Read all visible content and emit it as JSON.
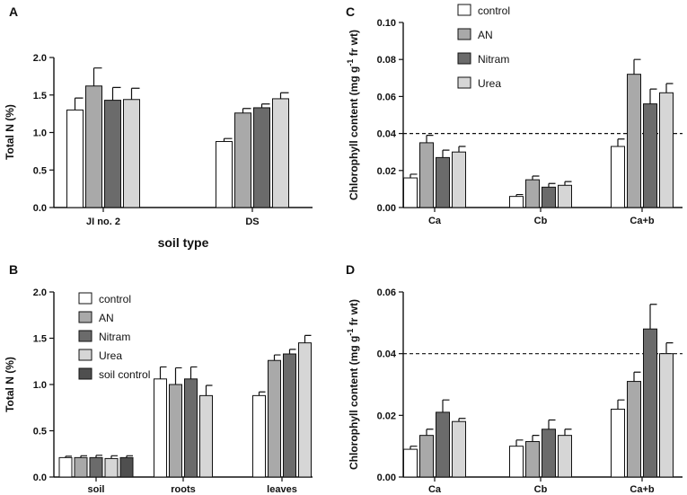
{
  "colors": {
    "control": "#ffffff",
    "AN": "#a9a9a9",
    "Nitram": "#6b6b6b",
    "Urea": "#d6d6d6",
    "soil control": "#4f4f4f"
  },
  "chart_data": [
    {
      "panel": "A",
      "type": "bar",
      "xlabel": "soil type",
      "ylabel": "Total N (%)",
      "ylim": [
        0,
        2.0
      ],
      "yticks": [
        "0.0",
        "0.5",
        "1.0",
        "1.5",
        "2.0"
      ],
      "categories": [
        "JI no. 2",
        "DS"
      ],
      "series": [
        {
          "name": "control",
          "values": [
            1.3,
            0.88
          ],
          "errors": [
            0.16,
            0.04
          ]
        },
        {
          "name": "AN",
          "values": [
            1.62,
            1.26
          ],
          "errors": [
            0.24,
            0.06
          ]
        },
        {
          "name": "Nitram",
          "values": [
            1.43,
            1.33
          ],
          "errors": [
            0.17,
            0.05
          ]
        },
        {
          "name": "Urea",
          "values": [
            1.44,
            1.45
          ],
          "errors": [
            0.15,
            0.08
          ]
        }
      ],
      "legend": false
    },
    {
      "panel": "B",
      "type": "bar",
      "xlabel": "",
      "ylabel": "Total N (%)",
      "ylim": [
        0,
        2.0
      ],
      "yticks": [
        "0.0",
        "0.5",
        "1.0",
        "1.5",
        "2.0"
      ],
      "categories": [
        "soil",
        "roots",
        "leaves"
      ],
      "series": [
        {
          "name": "control",
          "values": [
            0.21,
            1.06,
            0.88
          ],
          "errors": [
            0.015,
            0.13,
            0.04
          ]
        },
        {
          "name": "AN",
          "values": [
            0.21,
            1.0,
            1.26
          ],
          "errors": [
            0.02,
            0.18,
            0.06
          ]
        },
        {
          "name": "Nitram",
          "values": [
            0.21,
            1.06,
            1.33
          ],
          "errors": [
            0.025,
            0.13,
            0.05
          ]
        },
        {
          "name": "Urea",
          "values": [
            0.2,
            0.88,
            1.45
          ],
          "errors": [
            0.03,
            0.11,
            0.08
          ]
        },
        {
          "name": "soil control",
          "values": [
            0.21,
            null,
            null
          ],
          "errors": [
            0.02,
            null,
            null
          ]
        }
      ],
      "legend": true,
      "legend_position": "top-left"
    },
    {
      "panel": "C",
      "type": "bar",
      "xlabel": "",
      "ylabel": "Chlorophyll content (mg g-1 fr wt)",
      "ylim": [
        0,
        0.1
      ],
      "yticks": [
        "0.00",
        "0.02",
        "0.04",
        "0.06",
        "0.08",
        "0.10"
      ],
      "reference_line": 0.04,
      "categories": [
        "Ca",
        "Cb",
        "Ca+b"
      ],
      "series": [
        {
          "name": "control",
          "values": [
            0.016,
            0.006,
            0.033
          ],
          "errors": [
            0.002,
            0.001,
            0.004
          ]
        },
        {
          "name": "AN",
          "values": [
            0.035,
            0.015,
            0.072
          ],
          "errors": [
            0.004,
            0.002,
            0.008
          ]
        },
        {
          "name": "Nitram",
          "values": [
            0.027,
            0.011,
            0.056
          ],
          "errors": [
            0.004,
            0.002,
            0.008
          ]
        },
        {
          "name": "Urea",
          "values": [
            0.03,
            0.012,
            0.062
          ],
          "errors": [
            0.003,
            0.002,
            0.005
          ]
        }
      ],
      "legend": true,
      "legend_position": "top-left"
    },
    {
      "panel": "D",
      "type": "bar",
      "xlabel": "",
      "ylabel": "Chlorophyll content (mg g-1 fr wt)",
      "ylim": [
        0,
        0.06
      ],
      "yticks": [
        "0.00",
        "0.02",
        "0.04",
        "0.06"
      ],
      "reference_line": 0.04,
      "categories": [
        "Ca",
        "Cb",
        "Ca+b"
      ],
      "series": [
        {
          "name": "control",
          "values": [
            0.009,
            0.01,
            0.022
          ],
          "errors": [
            0.001,
            0.002,
            0.003
          ]
        },
        {
          "name": "AN",
          "values": [
            0.0135,
            0.0115,
            0.031
          ],
          "errors": [
            0.002,
            0.002,
            0.003
          ]
        },
        {
          "name": "Nitram",
          "values": [
            0.021,
            0.0155,
            0.048
          ],
          "errors": [
            0.004,
            0.003,
            0.008
          ]
        },
        {
          "name": "Urea",
          "values": [
            0.018,
            0.0135,
            0.04
          ],
          "errors": [
            0.001,
            0.002,
            0.0035
          ]
        }
      ],
      "legend": false
    }
  ]
}
